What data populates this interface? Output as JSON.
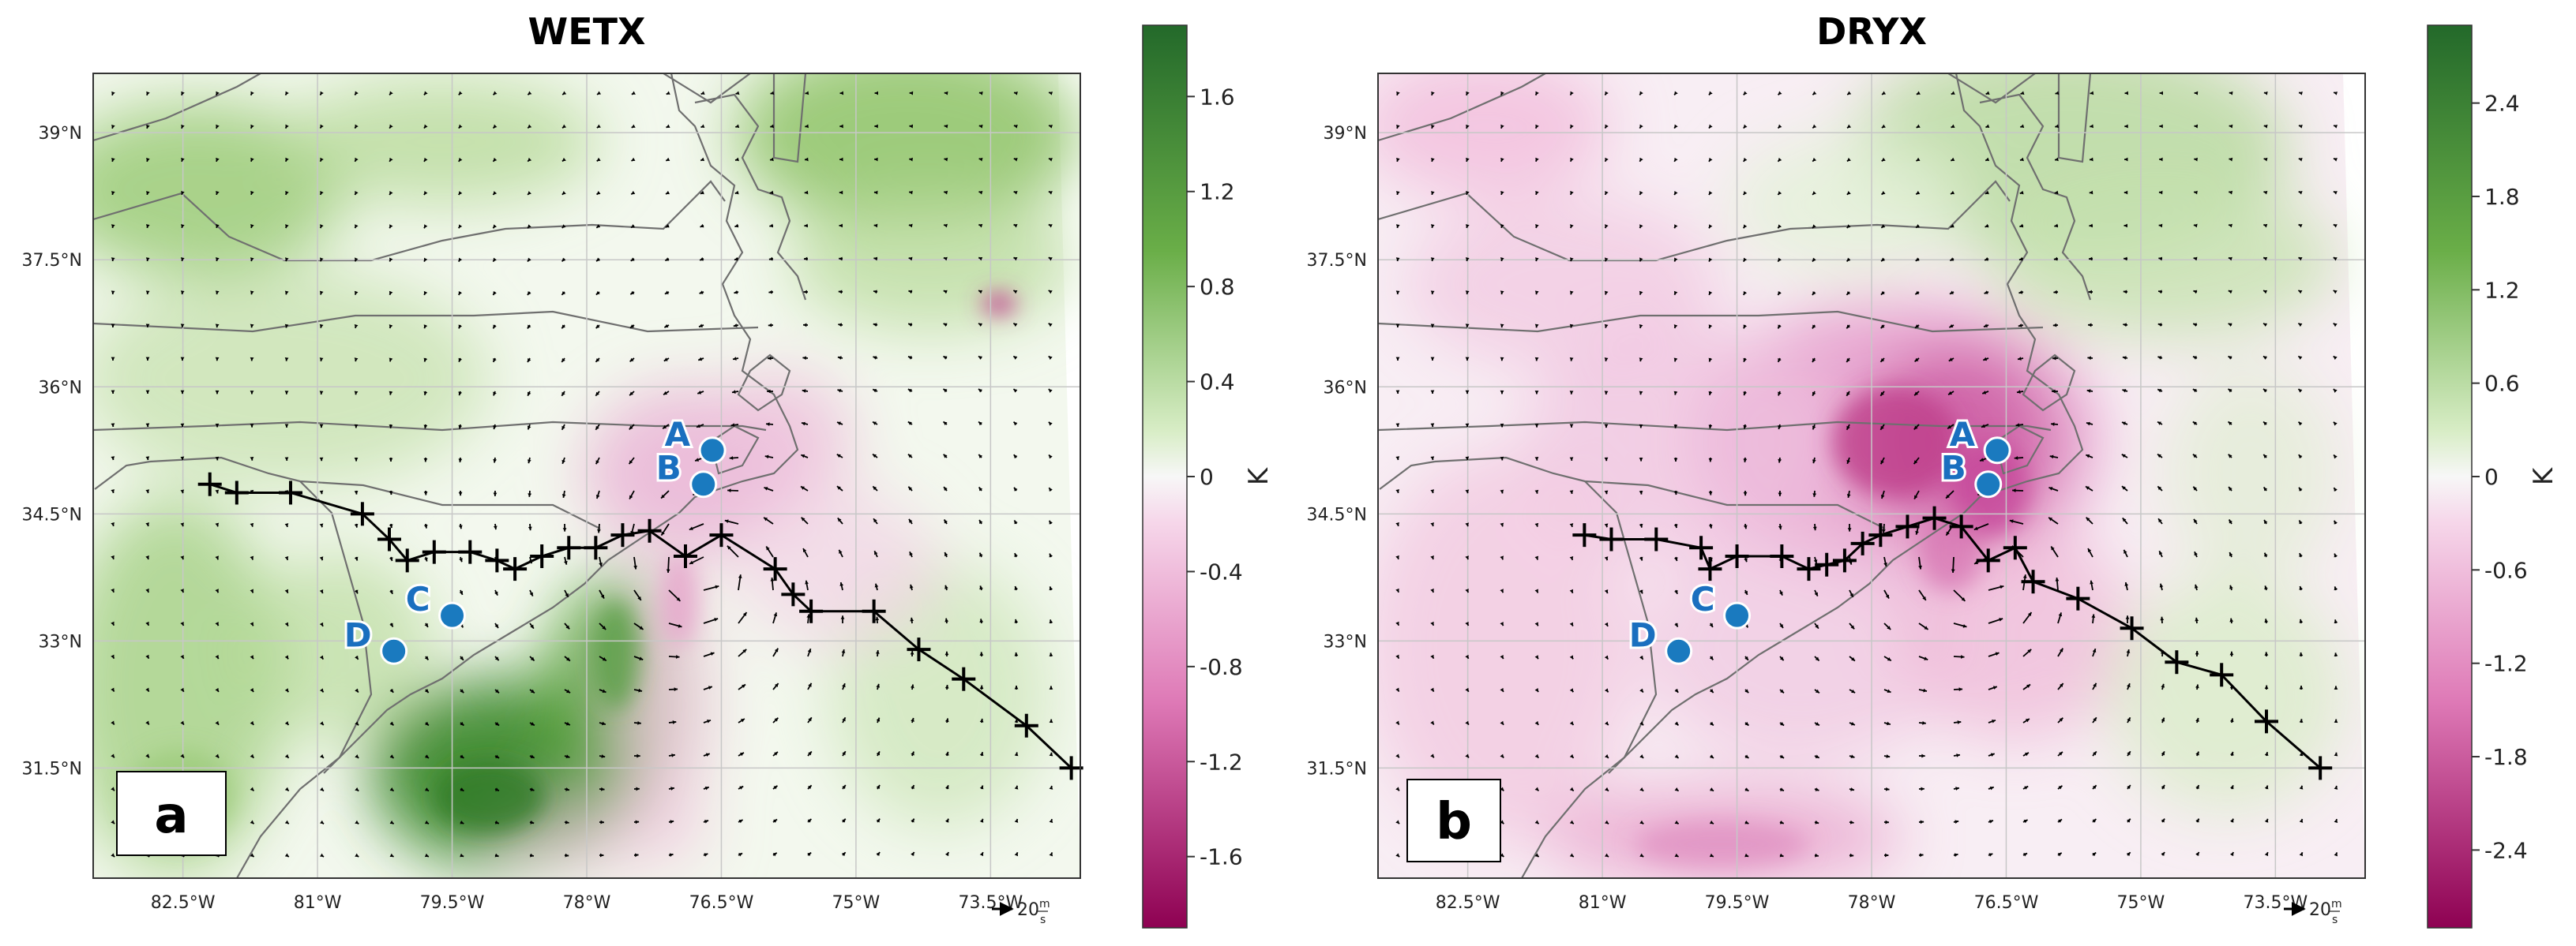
{
  "chart_data": [
    {
      "type": "heatmap",
      "panel_label": "a",
      "title": "WETX",
      "xlabel": "",
      "ylabel": "",
      "x_ticks": [
        {
          "value": -82.5,
          "label": "82.5°W"
        },
        {
          "value": -81,
          "label": "81°W"
        },
        {
          "value": -79.5,
          "label": "79.5°W"
        },
        {
          "value": -78,
          "label": "78°W"
        },
        {
          "value": -76.5,
          "label": "76.5°W"
        },
        {
          "value": -75,
          "label": "75°W"
        },
        {
          "value": -73.5,
          "label": "73.5°W"
        }
      ],
      "y_ticks": [
        {
          "value": 39,
          "label": "39°N"
        },
        {
          "value": 37.5,
          "label": "37.5°N"
        },
        {
          "value": 36,
          "label": "36°N"
        },
        {
          "value": 34.5,
          "label": "34.5°N"
        },
        {
          "value": 33,
          "label": "33°N"
        },
        {
          "value": 31.5,
          "label": "31.5°N"
        }
      ],
      "xlim": [
        -83.5,
        -72.5
      ],
      "ylim": [
        30.2,
        39.7
      ],
      "colorbar": {
        "label": "K",
        "range": [
          -1.9,
          1.9
        ],
        "ticks": [
          {
            "value": 1.6,
            "label": "1.6"
          },
          {
            "value": 1.2,
            "label": "1.2"
          },
          {
            "value": 0.8,
            "label": "0.8"
          },
          {
            "value": 0.4,
            "label": "0.4"
          },
          {
            "value": 0,
            "label": "0"
          },
          {
            "value": -0.4,
            "label": "-0.4"
          },
          {
            "value": -0.8,
            "label": "-0.8"
          },
          {
            "value": -1.2,
            "label": "-1.2"
          },
          {
            "value": -1.6,
            "label": "-1.6"
          }
        ]
      },
      "points": [
        {
          "label": "A",
          "lon": -76.6,
          "lat": 35.25
        },
        {
          "label": "B",
          "lon": -76.7,
          "lat": 34.85
        },
        {
          "label": "C",
          "lon": -79.5,
          "lat": 33.3
        },
        {
          "label": "D",
          "lon": -80.15,
          "lat": 32.88
        }
      ],
      "track": [
        {
          "lon": -82.2,
          "lat": 34.85
        },
        {
          "lon": -81.9,
          "lat": 34.75
        },
        {
          "lon": -81.3,
          "lat": 34.75
        },
        {
          "lon": -80.5,
          "lat": 34.5
        },
        {
          "lon": -80.2,
          "lat": 34.2
        },
        {
          "lon": -80.0,
          "lat": 33.95
        },
        {
          "lon": -79.7,
          "lat": 34.05
        },
        {
          "lon": -79.3,
          "lat": 34.05
        },
        {
          "lon": -79.0,
          "lat": 33.95
        },
        {
          "lon": -78.8,
          "lat": 33.85
        },
        {
          "lon": -78.5,
          "lat": 34.0
        },
        {
          "lon": -78.2,
          "lat": 34.1
        },
        {
          "lon": -77.9,
          "lat": 34.1
        },
        {
          "lon": -77.6,
          "lat": 34.25
        },
        {
          "lon": -77.3,
          "lat": 34.3
        },
        {
          "lon": -76.9,
          "lat": 34.0
        },
        {
          "lon": -76.5,
          "lat": 34.25
        },
        {
          "lon": -75.9,
          "lat": 33.85
        },
        {
          "lon": -75.7,
          "lat": 33.55
        },
        {
          "lon": -75.5,
          "lat": 33.35
        },
        {
          "lon": -74.8,
          "lat": 33.35
        },
        {
          "lon": -74.3,
          "lat": 32.9
        },
        {
          "lon": -73.8,
          "lat": 32.55
        },
        {
          "lon": -73.1,
          "lat": 32.0
        },
        {
          "lon": -72.6,
          "lat": 31.5
        }
      ],
      "wind_reference": {
        "value": 20,
        "unit": "m/s",
        "label": "20",
        "unit_label": "m\ns"
      }
    },
    {
      "type": "heatmap",
      "panel_label": "b",
      "title": "DRYX",
      "xlabel": "",
      "ylabel": "",
      "x_ticks": [
        {
          "value": -82.5,
          "label": "82.5°W"
        },
        {
          "value": -81,
          "label": "81°W"
        },
        {
          "value": -79.5,
          "label": "79.5°W"
        },
        {
          "value": -78,
          "label": "78°W"
        },
        {
          "value": -76.5,
          "label": "76.5°W"
        },
        {
          "value": -75,
          "label": "75°W"
        },
        {
          "value": -73.5,
          "label": "73.5°W"
        }
      ],
      "y_ticks": [
        {
          "value": 39,
          "label": "39°N"
        },
        {
          "value": 37.5,
          "label": "37.5°N"
        },
        {
          "value": 36,
          "label": "36°N"
        },
        {
          "value": 34.5,
          "label": "34.5°N"
        },
        {
          "value": 33,
          "label": "33°N"
        },
        {
          "value": 31.5,
          "label": "31.5°N"
        }
      ],
      "xlim": [
        -83.5,
        -72.5
      ],
      "ylim": [
        30.2,
        39.7
      ],
      "colorbar": {
        "label": "K",
        "range": [
          -2.9,
          2.9
        ],
        "ticks": [
          {
            "value": 2.4,
            "label": "2.4"
          },
          {
            "value": 1.8,
            "label": "1.8"
          },
          {
            "value": 1.2,
            "label": "1.2"
          },
          {
            "value": 0.6,
            "label": "0.6"
          },
          {
            "value": 0,
            "label": "0"
          },
          {
            "value": -0.6,
            "label": "-0.6"
          },
          {
            "value": -1.2,
            "label": "-1.2"
          },
          {
            "value": -1.8,
            "label": "-1.8"
          },
          {
            "value": -2.4,
            "label": "-2.4"
          }
        ]
      },
      "points": [
        {
          "label": "A",
          "lon": -76.6,
          "lat": 35.25
        },
        {
          "label": "B",
          "lon": -76.7,
          "lat": 34.85
        },
        {
          "label": "C",
          "lon": -79.5,
          "lat": 33.3
        },
        {
          "label": "D",
          "lon": -80.15,
          "lat": 32.88
        }
      ],
      "track": [
        {
          "lon": -81.2,
          "lat": 34.25
        },
        {
          "lon": -80.9,
          "lat": 34.2
        },
        {
          "lon": -80.4,
          "lat": 34.2
        },
        {
          "lon": -79.9,
          "lat": 34.1
        },
        {
          "lon": -79.8,
          "lat": 33.85
        },
        {
          "lon": -79.5,
          "lat": 34.0
        },
        {
          "lon": -79.0,
          "lat": 34.0
        },
        {
          "lon": -78.7,
          "lat": 33.85
        },
        {
          "lon": -78.5,
          "lat": 33.9
        },
        {
          "lon": -78.3,
          "lat": 33.95
        },
        {
          "lon": -78.1,
          "lat": 34.15
        },
        {
          "lon": -77.9,
          "lat": 34.25
        },
        {
          "lon": -77.6,
          "lat": 34.35
        },
        {
          "lon": -77.3,
          "lat": 34.45
        },
        {
          "lon": -77.0,
          "lat": 34.35
        },
        {
          "lon": -76.7,
          "lat": 33.95
        },
        {
          "lon": -76.4,
          "lat": 34.1
        },
        {
          "lon": -76.2,
          "lat": 33.7
        },
        {
          "lon": -75.7,
          "lat": 33.5
        },
        {
          "lon": -75.1,
          "lat": 33.15
        },
        {
          "lon": -74.6,
          "lat": 32.75
        },
        {
          "lon": -74.1,
          "lat": 32.6
        },
        {
          "lon": -73.6,
          "lat": 32.05
        },
        {
          "lon": -73.0,
          "lat": 31.5
        }
      ],
      "wind_reference": {
        "value": 20,
        "unit": "m/s",
        "label": "20",
        "unit_label": "m\ns"
      }
    }
  ],
  "colors": {
    "green_dark": "#1e6d1e",
    "green_mid": "#7fbf4e",
    "white": "#f7f7f7",
    "pink_mid": "#e495c6",
    "pink_dark": "#b0126a",
    "point": "#1a7abf",
    "track": "#000000",
    "border": "#6f6f6f",
    "grid": "#c7c7c7"
  }
}
